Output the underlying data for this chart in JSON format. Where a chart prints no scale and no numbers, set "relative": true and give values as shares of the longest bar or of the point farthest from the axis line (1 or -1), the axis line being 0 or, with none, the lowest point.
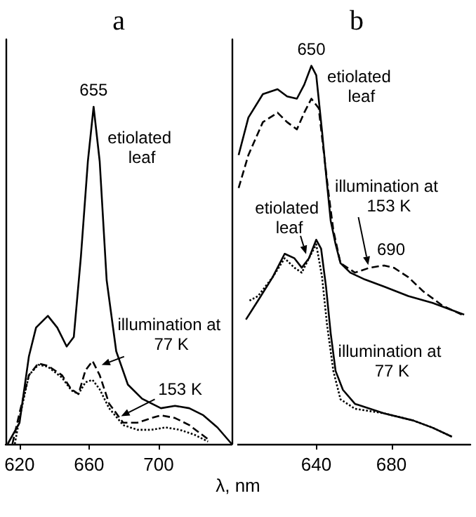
{
  "chart_data": [
    {
      "type": "line",
      "title": "a",
      "xlabel": "λ, nm",
      "relative": true,
      "xlim": [
        612,
        742
      ],
      "xticks": [
        620,
        660,
        700
      ],
      "marker": "none",
      "grid": false,
      "series": [
        {
          "color": "#000000",
          "line_style": "solid",
          "x": [
            613.2,
            620,
            625.4,
            629.5,
            636.3,
            641.7,
            647.1,
            651.2,
            655.3,
            659.3,
            662.6,
            666.1,
            670.1,
            675.6,
            682.3,
            690.5,
            701.3,
            709.4,
            717.6,
            725.7,
            733.8,
            742
          ],
          "values": [
            0,
            0.063,
            0.26,
            0.345,
            0.38,
            0.345,
            0.289,
            0.317,
            0.556,
            0.838,
            1,
            0.838,
            0.486,
            0.275,
            0.176,
            0.134,
            0.106,
            0.113,
            0.106,
            0.085,
            0.049,
            0
          ]
        },
        {
          "color": "#000000",
          "line_style": "dashed",
          "x": [
            615.9,
            620,
            625.4,
            630.8,
            636.3,
            644.4,
            649.8,
            653.9,
            657.9,
            662,
            666.1,
            671.5,
            679.6,
            687.8,
            695.9,
            701.3,
            709.4,
            717.6,
            728.4
          ],
          "values": [
            0,
            0.092,
            0.204,
            0.239,
            0.232,
            0.204,
            0.162,
            0.148,
            0.218,
            0.246,
            0.204,
            0.12,
            0.063,
            0.063,
            0.077,
            0.085,
            0.077,
            0.056,
            0.014
          ]
        },
        {
          "color": "#000000",
          "line_style": "dotted",
          "x": [
            617.3,
            620,
            625.4,
            630.8,
            636.3,
            644.4,
            649.8,
            653.9,
            657.9,
            662,
            666.1,
            671.5,
            679.6,
            687.8,
            695.9,
            704,
            712.1,
            720.3,
            728.4
          ],
          "values": [
            0,
            0.077,
            0.204,
            0.235,
            0.229,
            0.197,
            0.159,
            0.148,
            0.183,
            0.19,
            0.162,
            0.106,
            0.056,
            0.042,
            0.042,
            0.049,
            0.042,
            0.028,
            0.007
          ]
        }
      ],
      "annotations": [
        {
          "text": "655",
          "x": 662.6,
          "y": 1
        },
        {
          "text": "etiolated leaf",
          "x": 666.1,
          "y": 0.838
        },
        {
          "text": "illumination at 77 K",
          "x": 664,
          "y": 0.23
        },
        {
          "text": "153 K",
          "x": 676,
          "y": 0.07
        }
      ]
    },
    {
      "type": "line",
      "title": "b",
      "relative": true,
      "xlim": [
        598,
        722
      ],
      "xticks": [
        640,
        680
      ],
      "marker": "none",
      "grid": false,
      "series": [
        {
          "color": "#000000",
          "line_style": "solid",
          "x": [
            598.7,
            603.9,
            611.6,
            619.4,
            624.5,
            629.7,
            633.6,
            637.4,
            640,
            643.1,
            645.2,
            647.7,
            650.3,
            652.9,
            658.1,
            665.8,
            676.1,
            689,
            701.9,
            712.2,
            718.7
          ],
          "values": [
            0.764,
            0.863,
            0.925,
            0.938,
            0.919,
            0.913,
            0.95,
            1,
            0.975,
            0.826,
            0.714,
            0.59,
            0.528,
            0.478,
            0.453,
            0.435,
            0.416,
            0.391,
            0.373,
            0.354,
            0.342
          ]
        },
        {
          "color": "#000000",
          "line_style": "dashed",
          "x": [
            598.7,
            603.9,
            611.6,
            619.4,
            624.5,
            629.7,
            633.6,
            637.4,
            641.3,
            643.9,
            646.5,
            649.1,
            652.9,
            660.6,
            668.4,
            676.1,
            681.3,
            689,
            696.8,
            707.1,
            717.4
          ],
          "values": [
            0.677,
            0.764,
            0.851,
            0.876,
            0.851,
            0.832,
            0.876,
            0.913,
            0.888,
            0.776,
            0.665,
            0.565,
            0.478,
            0.453,
            0.466,
            0.472,
            0.466,
            0.441,
            0.404,
            0.366,
            0.342
          ]
        },
        {
          "color": "#000000",
          "line_style": "solid",
          "x": [
            602.6,
            609,
            616.8,
            623.2,
            628.4,
            632.3,
            636.1,
            640,
            642.6,
            645.2,
            647.7,
            650.3,
            654.2,
            660.6,
            676.1,
            691.6,
            701.9,
            712.2
          ],
          "values": [
            0.329,
            0.379,
            0.441,
            0.503,
            0.491,
            0.466,
            0.491,
            0.54,
            0.516,
            0.416,
            0.292,
            0.193,
            0.143,
            0.106,
            0.081,
            0.062,
            0.043,
            0.019
          ]
        },
        {
          "color": "#000000",
          "line_style": "dotted",
          "x": [
            604.5,
            609,
            616.8,
            623.2,
            628.4,
            632.3,
            636.1,
            640,
            643.1,
            645.7,
            649.1,
            652.9,
            660.6,
            676.1,
            691.6,
            701.9,
            712.2
          ],
          "values": [
            0.379,
            0.391,
            0.441,
            0.491,
            0.466,
            0.453,
            0.491,
            0.528,
            0.441,
            0.317,
            0.193,
            0.118,
            0.093,
            0.081,
            0.062,
            0.043,
            0.019
          ]
        }
      ],
      "annotations": [
        {
          "text": "650",
          "x": 637.4,
          "y": 1
        },
        {
          "text": "etiolated leaf",
          "x": 643.1,
          "y": 0.826
        },
        {
          "text": "illumination at 153 K",
          "x": 668.4,
          "y": 0.466
        },
        {
          "text": "690",
          "x": 681.3,
          "y": 0.466
        },
        {
          "text": "etiolated leaf",
          "x": 636.1,
          "y": 0.491
        },
        {
          "text": "illumination at 77 K",
          "x": 652.9,
          "y": 0.118
        }
      ]
    }
  ]
}
